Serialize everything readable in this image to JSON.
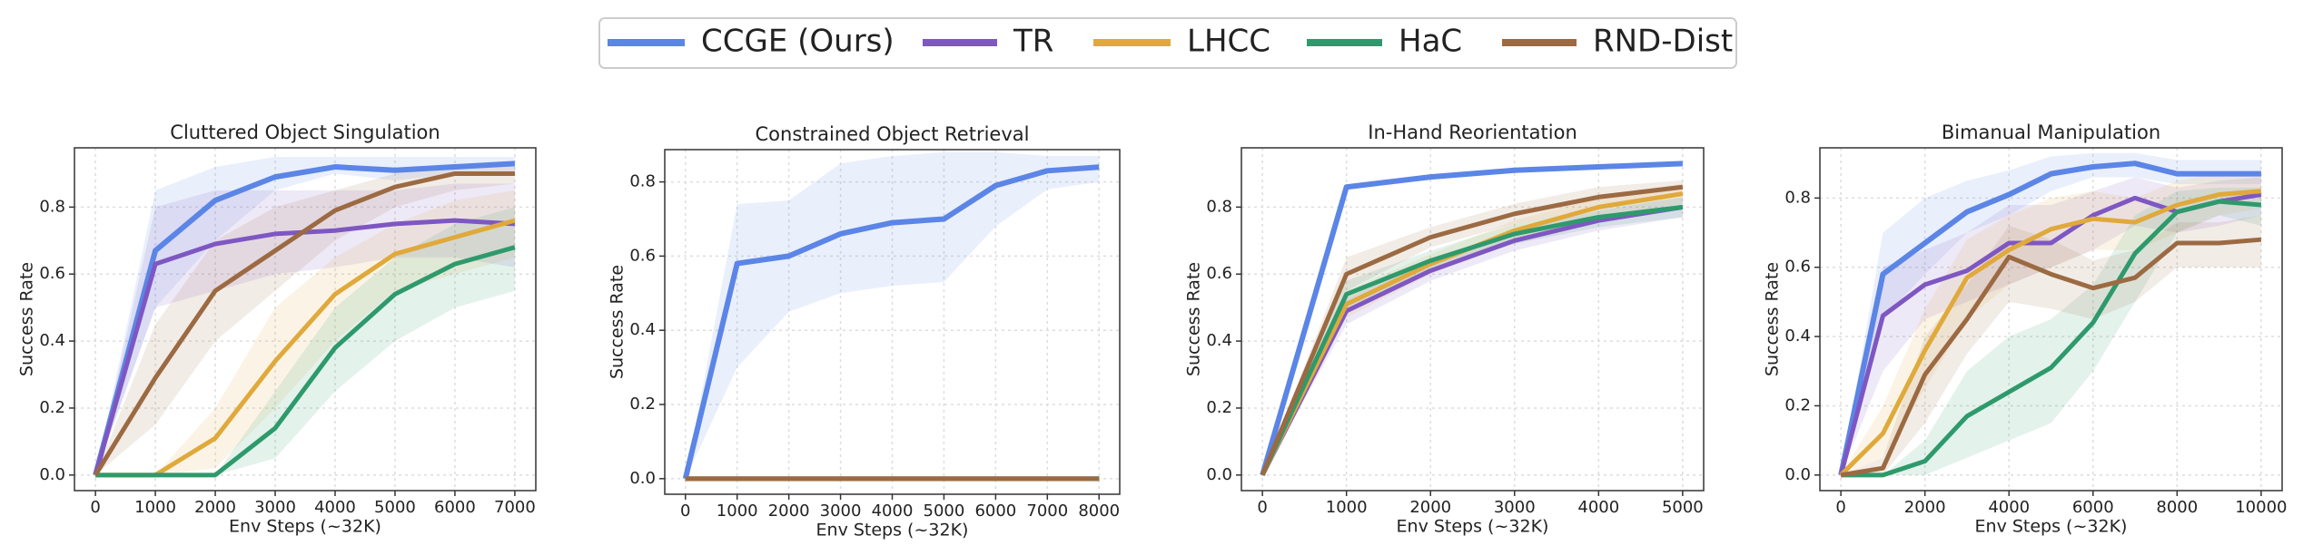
{
  "chart_data": [
    {
      "type": "line",
      "title": "Cluttered Object Singulation",
      "xlabel": "Env Steps (~32K)",
      "ylabel": "Success Rate",
      "grid": true,
      "x": [
        0,
        1000,
        2000,
        3000,
        4000,
        5000,
        6000,
        7000
      ],
      "xlim": [
        -350,
        7350
      ],
      "ylim": [
        -0.0465,
        0.977
      ],
      "xticks": [
        0,
        1000,
        2000,
        3000,
        4000,
        5000,
        6000,
        7000
      ],
      "yticks": [
        {
          "value": 0,
          "label": "0.0"
        },
        0.2,
        0.4,
        0.6,
        0.8
      ],
      "series": [
        {
          "name": "CCGE (Ours)",
          "color": "#5b85e6",
          "values": [
            0,
            0.67,
            0.82,
            0.89,
            0.92,
            0.91,
            0.92,
            0.93
          ],
          "lower": [
            0,
            0.5,
            0.7,
            0.85,
            0.9,
            0.88,
            0.9,
            0.9
          ],
          "upper": [
            0,
            0.85,
            0.92,
            0.95,
            0.95,
            0.95,
            0.95,
            0.95
          ]
        },
        {
          "name": "TR",
          "color": "#7e57c2",
          "values": [
            0,
            0.63,
            0.69,
            0.72,
            0.73,
            0.75,
            0.76,
            0.75
          ],
          "lower": [
            0,
            0.5,
            0.55,
            0.6,
            0.62,
            0.65,
            0.65,
            0.62
          ],
          "upper": [
            0,
            0.8,
            0.85,
            0.85,
            0.85,
            0.85,
            0.87,
            0.87
          ]
        },
        {
          "name": "LHCC",
          "color": "#e0a93b",
          "values": [
            0,
            0,
            0.11,
            0.34,
            0.54,
            0.66,
            0.71,
            0.76
          ],
          "lower": [
            0,
            0,
            0.02,
            0.2,
            0.4,
            0.55,
            0.6,
            0.65
          ],
          "upper": [
            0,
            0,
            0.2,
            0.5,
            0.65,
            0.75,
            0.82,
            0.85
          ]
        },
        {
          "name": "HaC",
          "color": "#2e9a6c",
          "values": [
            0,
            0,
            0,
            0.14,
            0.38,
            0.54,
            0.63,
            0.68
          ],
          "lower": [
            0,
            0,
            0,
            0.05,
            0.25,
            0.4,
            0.5,
            0.55
          ],
          "upper": [
            0,
            0,
            0,
            0.25,
            0.5,
            0.65,
            0.75,
            0.8
          ]
        },
        {
          "name": "RND-Dist",
          "color": "#9c6a42",
          "values": [
            0,
            0.29,
            0.55,
            0.67,
            0.79,
            0.86,
            0.9,
            0.9
          ],
          "lower": [
            0,
            0.15,
            0.4,
            0.55,
            0.7,
            0.8,
            0.85,
            0.87
          ],
          "upper": [
            0,
            0.45,
            0.7,
            0.8,
            0.85,
            0.9,
            0.92,
            0.93
          ]
        }
      ]
    },
    {
      "type": "line",
      "title": "Constrained Object Retrieval",
      "xlabel": "Env Steps (~32K)",
      "ylabel": "Success Rate",
      "grid": true,
      "x": [
        0,
        1000,
        2000,
        3000,
        4000,
        5000,
        6000,
        7000,
        8000
      ],
      "xlim": [
        -400,
        8400
      ],
      "ylim": [
        -0.042,
        0.887
      ],
      "xticks": [
        0,
        1000,
        2000,
        3000,
        4000,
        5000,
        6000,
        7000,
        8000
      ],
      "yticks": [
        {
          "value": 0,
          "label": "0.0"
        },
        0.2,
        0.4,
        0.6,
        0.8
      ],
      "series": [
        {
          "name": "CCGE (Ours)",
          "color": "#5b85e6",
          "values": [
            0,
            0.58,
            0.6,
            0.66,
            0.69,
            0.7,
            0.79,
            0.83,
            0.84
          ],
          "lower": [
            0,
            0.3,
            0.45,
            0.5,
            0.52,
            0.53,
            0.68,
            0.78,
            0.8
          ],
          "upper": [
            0,
            0.74,
            0.75,
            0.85,
            0.87,
            0.88,
            0.88,
            0.87,
            0.87
          ]
        },
        {
          "name": "TR",
          "color": "#7e57c2",
          "values": [
            0,
            0,
            0,
            0,
            0,
            0,
            0,
            0,
            0
          ]
        },
        {
          "name": "LHCC",
          "color": "#e0a93b",
          "values": [
            0,
            0,
            0,
            0,
            0,
            0,
            0,
            0,
            0
          ]
        },
        {
          "name": "HaC",
          "color": "#2e9a6c",
          "values": [
            0,
            0,
            0,
            0,
            0,
            0,
            0,
            0,
            0
          ]
        },
        {
          "name": "RND-Dist",
          "color": "#9c6a42",
          "values": [
            0,
            0,
            0,
            0,
            0,
            0,
            0,
            0,
            0
          ]
        }
      ]
    },
    {
      "type": "line",
      "title": "In-Hand Reorientation",
      "xlabel": "Env Steps (~32K)",
      "ylabel": "Success Rate",
      "grid": true,
      "x": [
        0,
        1000,
        2000,
        3000,
        4000,
        5000
      ],
      "xlim": [
        -250,
        5250
      ],
      "ylim": [
        -0.0465,
        0.977
      ],
      "xticks": [
        0,
        1000,
        2000,
        3000,
        4000,
        5000
      ],
      "yticks": [
        {
          "value": 0,
          "label": "0.0"
        },
        0.2,
        0.4,
        0.6,
        0.8
      ],
      "series": [
        {
          "name": "CCGE (Ours)",
          "color": "#5b85e6",
          "values": [
            0,
            0.86,
            0.89,
            0.91,
            0.92,
            0.93
          ]
        },
        {
          "name": "TR",
          "color": "#7e57c2",
          "values": [
            0,
            0.49,
            0.61,
            0.7,
            0.76,
            0.8
          ],
          "lower": [
            0,
            0.45,
            0.58,
            0.67,
            0.73,
            0.77
          ],
          "upper": [
            0,
            0.53,
            0.64,
            0.73,
            0.79,
            0.83
          ]
        },
        {
          "name": "LHCC",
          "color": "#e0a93b",
          "values": [
            0,
            0.51,
            0.63,
            0.73,
            0.8,
            0.84
          ],
          "lower": [
            0,
            0.47,
            0.6,
            0.7,
            0.77,
            0.81
          ],
          "upper": [
            0,
            0.55,
            0.66,
            0.76,
            0.83,
            0.87
          ]
        },
        {
          "name": "HaC",
          "color": "#2e9a6c",
          "values": [
            0,
            0.54,
            0.64,
            0.72,
            0.77,
            0.8
          ],
          "lower": [
            0,
            0.5,
            0.61,
            0.69,
            0.74,
            0.77
          ],
          "upper": [
            0,
            0.58,
            0.67,
            0.75,
            0.8,
            0.83
          ]
        },
        {
          "name": "RND-Dist",
          "color": "#9c6a42",
          "values": [
            0,
            0.6,
            0.71,
            0.78,
            0.83,
            0.86
          ],
          "lower": [
            0,
            0.55,
            0.68,
            0.75,
            0.8,
            0.84
          ],
          "upper": [
            0,
            0.65,
            0.74,
            0.81,
            0.86,
            0.88
          ]
        }
      ]
    },
    {
      "type": "line",
      "title": "Bimanual Manipulation",
      "xlabel": "Env Steps (~32K)",
      "ylabel": "Success Rate",
      "grid": true,
      "x": [
        0,
        1000,
        2000,
        3000,
        4000,
        5000,
        6000,
        7000,
        8000,
        9000,
        10000
      ],
      "xlim": [
        -500,
        10500
      ],
      "ylim": [
        -0.045,
        0.945
      ],
      "xticks": [
        0,
        2000,
        4000,
        6000,
        8000,
        10000
      ],
      "yticks": [
        {
          "value": 0,
          "label": "0.0"
        },
        0.2,
        0.4,
        0.6,
        0.8
      ],
      "series": [
        {
          "name": "CCGE (Ours)",
          "color": "#5b85e6",
          "values": [
            0,
            0.58,
            0.67,
            0.76,
            0.81,
            0.87,
            0.89,
            0.9,
            0.87,
            0.87,
            0.87
          ],
          "lower": [
            0,
            0.45,
            0.58,
            0.7,
            0.75,
            0.82,
            0.86,
            0.86,
            0.84,
            0.84,
            0.84
          ],
          "upper": [
            0,
            0.7,
            0.8,
            0.85,
            0.88,
            0.92,
            0.93,
            0.93,
            0.91,
            0.91,
            0.91
          ]
        },
        {
          "name": "TR",
          "color": "#7e57c2",
          "values": [
            0,
            0.46,
            0.55,
            0.59,
            0.67,
            0.67,
            0.75,
            0.8,
            0.76,
            0.79,
            0.81
          ],
          "lower": [
            0,
            0.3,
            0.45,
            0.5,
            0.55,
            0.6,
            0.65,
            0.72,
            0.7,
            0.72,
            0.75
          ],
          "upper": [
            0,
            0.6,
            0.65,
            0.7,
            0.78,
            0.78,
            0.82,
            0.86,
            0.83,
            0.85,
            0.86
          ]
        },
        {
          "name": "LHCC",
          "color": "#e0a93b",
          "values": [
            0,
            0.12,
            0.36,
            0.57,
            0.65,
            0.71,
            0.74,
            0.73,
            0.78,
            0.81,
            0.82
          ],
          "lower": [
            0,
            0.05,
            0.25,
            0.45,
            0.55,
            0.6,
            0.65,
            0.65,
            0.7,
            0.75,
            0.77
          ],
          "upper": [
            0,
            0.2,
            0.48,
            0.68,
            0.75,
            0.8,
            0.82,
            0.8,
            0.85,
            0.87,
            0.87
          ]
        },
        {
          "name": "HaC",
          "color": "#2e9a6c",
          "values": [
            0,
            0,
            0.04,
            0.17,
            0.24,
            0.31,
            0.44,
            0.64,
            0.76,
            0.79,
            0.78
          ],
          "lower": [
            0,
            0,
            0,
            0.05,
            0.1,
            0.15,
            0.3,
            0.5,
            0.7,
            0.75,
            0.72
          ],
          "upper": [
            0,
            0,
            0.1,
            0.3,
            0.4,
            0.45,
            0.55,
            0.75,
            0.82,
            0.83,
            0.83
          ]
        },
        {
          "name": "RND-Dist",
          "color": "#9c6a42",
          "values": [
            0,
            0.02,
            0.29,
            0.45,
            0.63,
            0.58,
            0.54,
            0.57,
            0.67,
            0.67,
            0.68
          ],
          "lower": [
            0,
            0,
            0.15,
            0.35,
            0.5,
            0.48,
            0.45,
            0.5,
            0.6,
            0.6,
            0.6
          ],
          "upper": [
            0,
            0.05,
            0.4,
            0.55,
            0.72,
            0.68,
            0.62,
            0.65,
            0.73,
            0.73,
            0.75
          ]
        }
      ]
    }
  ]
}
